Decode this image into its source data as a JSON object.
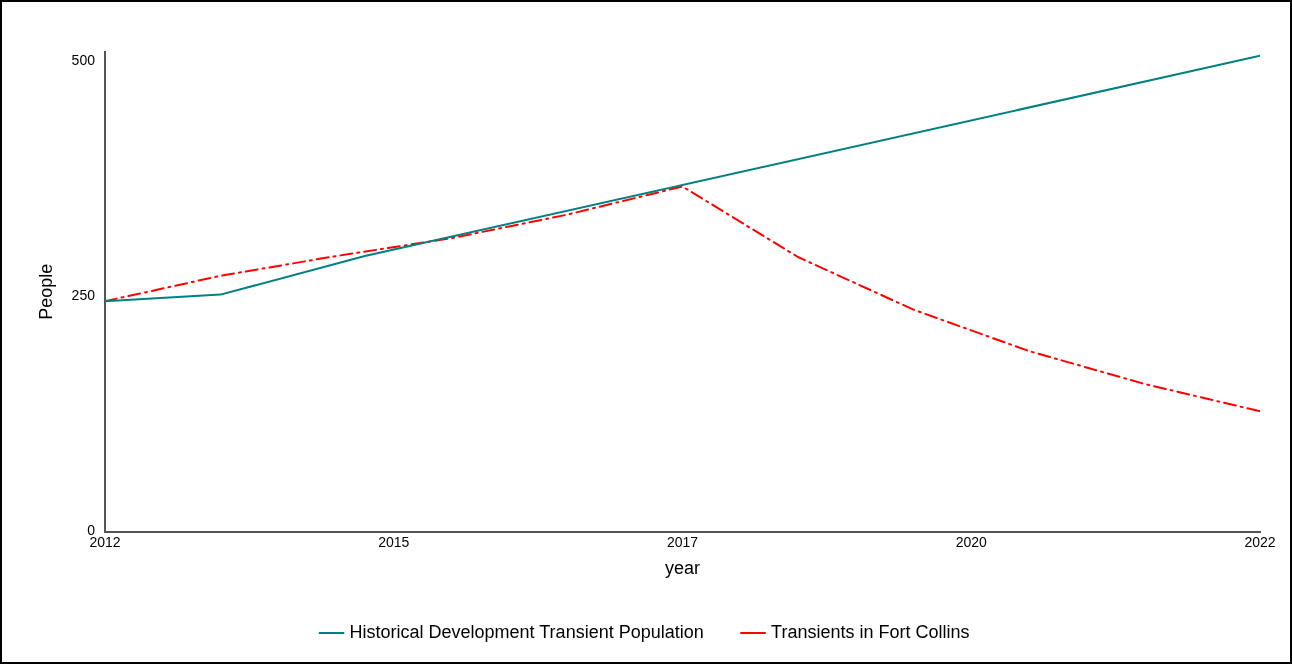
{
  "chart_data": {
    "type": "line",
    "xlabel": "year",
    "ylabel": "People",
    "xlim": [
      2012,
      2022
    ],
    "xticks": [
      2012,
      {
        "value": 2014.5,
        "label": "2015"
      },
      2017,
      {
        "value": 2019.5,
        "label": "2020"
      },
      2022
    ],
    "ylim": [
      0,
      510
    ],
    "yticks": [
      0,
      250,
      500
    ],
    "grid": false,
    "legend": "bottom",
    "marker": "none",
    "series": [
      {
        "name": "Historical Development Transient Population",
        "color": "#008080",
        "line_style": "solid",
        "x": [
          2012,
          2013,
          2014.25,
          2022
        ],
        "values": [
          245,
          252,
          293,
          506
        ]
      },
      {
        "name": "Transients in Fort Collins",
        "color": "#ff0000",
        "line_style": "dashed",
        "x": [
          2012,
          2013,
          2014,
          2015,
          2016,
          2017,
          2018,
          2019,
          2020,
          2021,
          2022
        ],
        "values": [
          245,
          272,
          293,
          312,
          337,
          367,
          292,
          236,
          192,
          157,
          128
        ]
      }
    ]
  }
}
